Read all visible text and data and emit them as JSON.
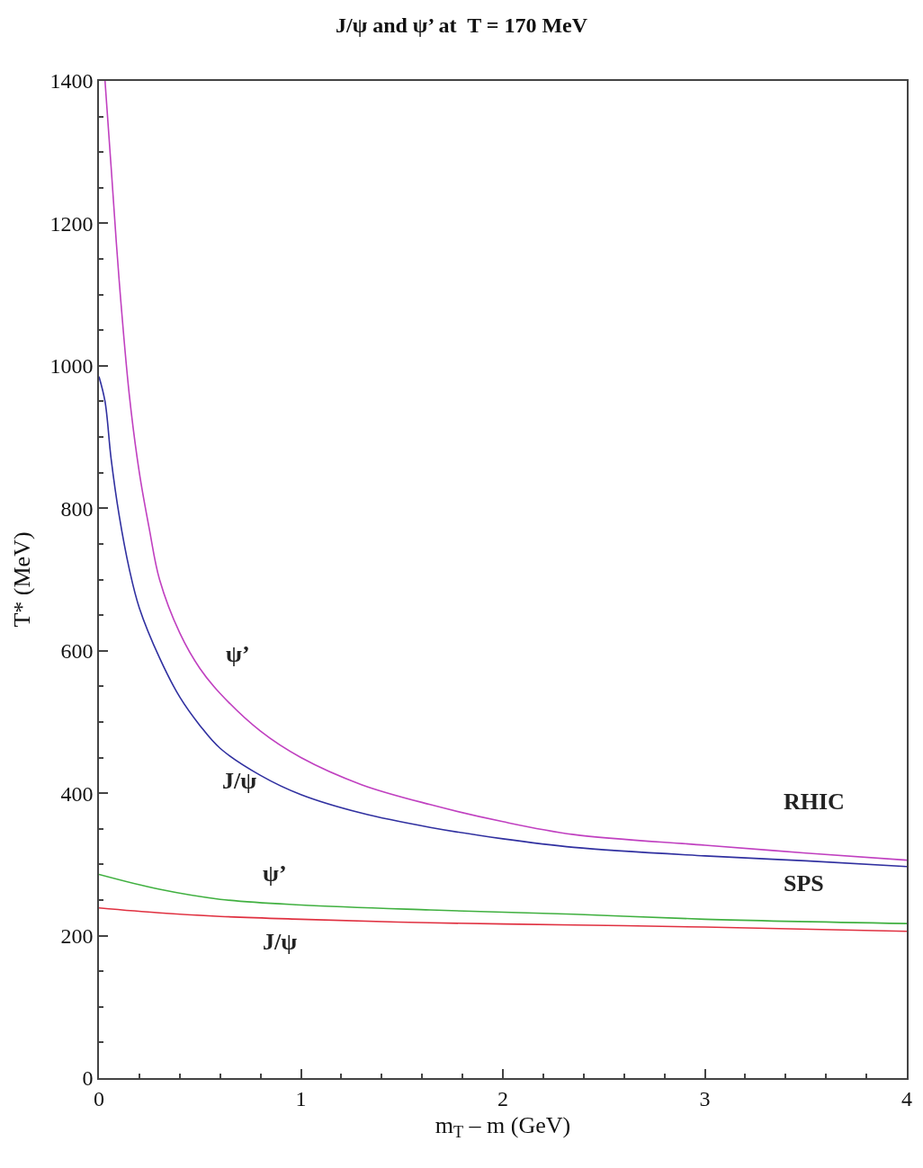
{
  "chart_data": {
    "type": "line",
    "title": "J/ψ and ψ’ at  T = 170 MeV",
    "xlabel": "m$_{T}$ – m (GeV)",
    "ylabel": "T* (MeV)",
    "xlim": [
      0,
      4
    ],
    "ylim": [
      0,
      1400
    ],
    "xticks": [
      0,
      1,
      2,
      3,
      4
    ],
    "yticks": [
      0,
      200,
      400,
      600,
      800,
      1000,
      1200,
      1400
    ],
    "marker": "none",
    "line_style": "solid",
    "series": [
      {
        "name": "ψ’",
        "color": "#c040c0",
        "x": [
          0.03,
          0.06,
          0.1,
          0.15,
          0.2,
          0.25,
          0.3,
          0.4,
          0.5,
          0.6,
          0.8,
          1.0,
          1.3,
          1.64,
          2.0,
          2.35,
          3.0,
          3.5,
          4.0
        ],
        "values": [
          1400,
          1280,
          1120,
          960,
          850,
          770,
          700,
          625,
          575,
          540,
          487,
          450,
          412,
          384,
          360,
          342,
          327,
          316,
          306
        ]
      },
      {
        "name": "J/ψ",
        "color": "#3030a0",
        "x": [
          0,
          0.03,
          0.06,
          0.1,
          0.15,
          0.2,
          0.3,
          0.4,
          0.5,
          0.6,
          0.8,
          1.0,
          1.3,
          1.64,
          2.0,
          2.35,
          3.0,
          3.5,
          4.0
        ],
        "values": [
          985,
          950,
          870,
          790,
          715,
          660,
          590,
          535,
          495,
          463,
          425,
          398,
          372,
          352,
          336,
          324,
          312,
          305,
          297
        ]
      },
      {
        "name": "ψ’",
        "color": "#40b040",
        "x": [
          0,
          0.3,
          0.6,
          1.0,
          1.64,
          2.35,
          3.0,
          4.0
        ],
        "values": [
          286,
          265,
          251,
          243,
          236,
          230,
          223,
          217
        ]
      },
      {
        "name": "J/ψ",
        "color": "#e03040",
        "x": [
          0,
          0.3,
          0.6,
          1.0,
          1.64,
          2.35,
          3.0,
          4.0
        ],
        "values": [
          239,
          232,
          227,
          223,
          218,
          215,
          212,
          206
        ]
      }
    ],
    "annotations": [
      "RHIC",
      "SPS"
    ]
  }
}
